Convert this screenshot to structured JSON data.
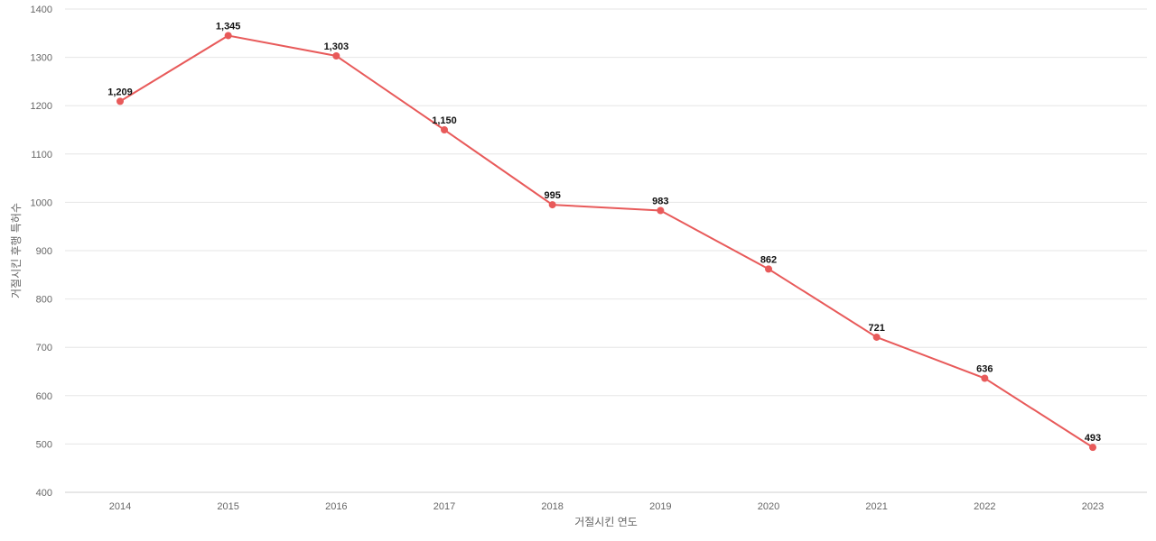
{
  "chart_data": {
    "type": "line",
    "title": "",
    "xlabel": "거절시킨 연도",
    "ylabel": "거절시킨 후행 특허수",
    "x": [
      "2014",
      "2015",
      "2016",
      "2017",
      "2018",
      "2019",
      "2020",
      "2021",
      "2022",
      "2023"
    ],
    "ylim": [
      400,
      1400
    ],
    "yticks": [
      400,
      500,
      600,
      700,
      800,
      900,
      1000,
      1100,
      1200,
      1300,
      1400
    ],
    "grid": true,
    "legend": "none",
    "series": [
      {
        "values": [
          1209,
          1345,
          1303,
          1150,
          995,
          983,
          862,
          721,
          636,
          493
        ],
        "labels": [
          "1,209",
          "1,345",
          "1,303",
          "1,150",
          "995",
          "983",
          "862",
          "721",
          "636",
          "493"
        ],
        "color": "#e85a5a"
      }
    ]
  }
}
